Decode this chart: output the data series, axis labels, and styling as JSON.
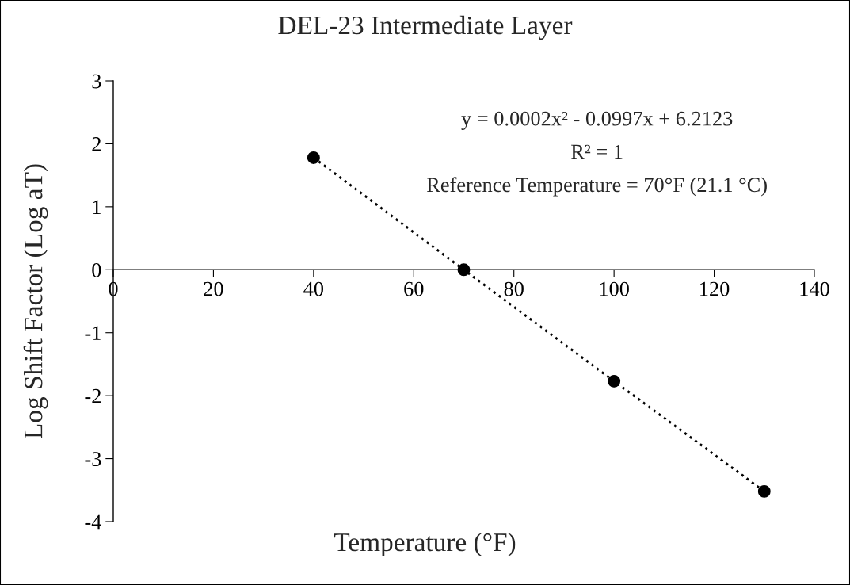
{
  "chart_data": {
    "type": "scatter",
    "title": "DEL-23 Intermediate Layer",
    "xlabel": "Temperature (°F)",
    "ylabel": "Log Shift Factor (Log aT)",
    "x": [
      40,
      70,
      100,
      130
    ],
    "series": [
      {
        "color": "#000000",
        "values": [
          1.78,
          0,
          -1.77,
          -3.52
        ],
        "marker": "circle"
      },
      {
        "type": "line",
        "color": "#000000",
        "x": [
          40,
          70,
          100,
          130
        ],
        "values": [
          1.78,
          0,
          -1.77,
          -3.52
        ],
        "line_style": "dotted",
        "marker": "none"
      }
    ],
    "xlim": [
      0,
      140
    ],
    "xticks": [
      0,
      20,
      40,
      60,
      80,
      100,
      120,
      140
    ],
    "ylim": [
      -4,
      3
    ],
    "yticks": [
      -4,
      -3,
      -2,
      -1,
      0,
      1,
      2,
      3
    ],
    "grid": false,
    "legend": false,
    "annotations": [
      "y = 0.0002x² - 0.0997x + 6.2123",
      "R² = 1",
      "Reference Temperature = 70°F (21.1 °C)"
    ]
  }
}
